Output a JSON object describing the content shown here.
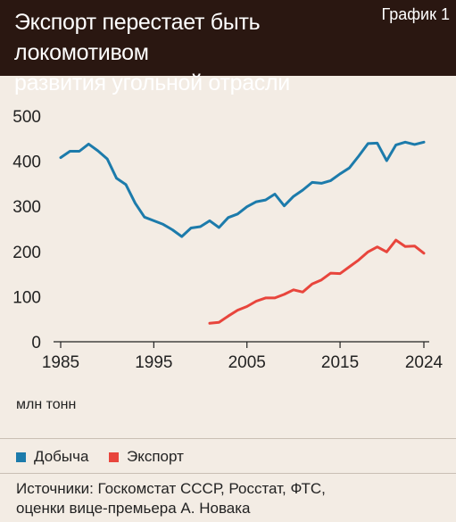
{
  "header": {
    "title_line1": "Экспорт перестает быть локомотивом",
    "title_line2": "развития угольной отрасли",
    "badge": "График 1"
  },
  "colors": {
    "header_bg": "#2a1711",
    "background": "#f3ece4",
    "production": "#1c7bab",
    "export": "#e8453c"
  },
  "unit_label": "млн тонн",
  "legend": [
    {
      "label": "Добыча",
      "color": "#1c7bab"
    },
    {
      "label": "Экспорт",
      "color": "#e8453c"
    }
  ],
  "source_line1": "Источники: Госкомстат СССР, Росстат, ФТС,",
  "source_line2": "оценки вице-премьера А. Новака",
  "chart_data": {
    "type": "line",
    "title": "Экспорт перестает быть локомотивом развития угольной отрасли",
    "ylabel": "млн тонн",
    "xlim": [
      1985,
      2024
    ],
    "ylim": [
      0,
      500
    ],
    "x_ticks": [
      1985,
      1995,
      2005,
      2015,
      2024
    ],
    "y_ticks": [
      0,
      100,
      200,
      300,
      400,
      500
    ],
    "grid": false,
    "legend_position": "bottom",
    "series": [
      {
        "name": "Добыча",
        "color": "#1c7bab",
        "x": [
          1985,
          1986,
          1987,
          1988,
          1989,
          1990,
          1991,
          1992,
          1993,
          1994,
          1995,
          1996,
          1997,
          1998,
          1999,
          2000,
          2001,
          2002,
          2003,
          2004,
          2005,
          2006,
          2007,
          2008,
          2009,
          2010,
          2011,
          2012,
          2013,
          2014,
          2015,
          2016,
          2017,
          2018,
          2019,
          2020,
          2021,
          2022,
          2023,
          2024
        ],
        "values": [
          408,
          422,
          422,
          438,
          423,
          405,
          362,
          348,
          307,
          276,
          268,
          260,
          248,
          233,
          252,
          255,
          268,
          253,
          275,
          283,
          299,
          310,
          314,
          327,
          301,
          322,
          336,
          353,
          351,
          357,
          372,
          385,
          411,
          439,
          440,
          401,
          436,
          442,
          437,
          442
        ]
      },
      {
        "name": "Экспорт",
        "color": "#e8453c",
        "x": [
          2001,
          2002,
          2003,
          2004,
          2005,
          2006,
          2007,
          2008,
          2009,
          2010,
          2011,
          2012,
          2013,
          2014,
          2015,
          2016,
          2017,
          2018,
          2019,
          2020,
          2021,
          2022,
          2023,
          2024
        ],
        "values": [
          41,
          43,
          57,
          70,
          78,
          90,
          97,
          97,
          105,
          115,
          110,
          128,
          137,
          152,
          151,
          166,
          181,
          199,
          210,
          199,
          225,
          211,
          212,
          196
        ]
      }
    ]
  }
}
